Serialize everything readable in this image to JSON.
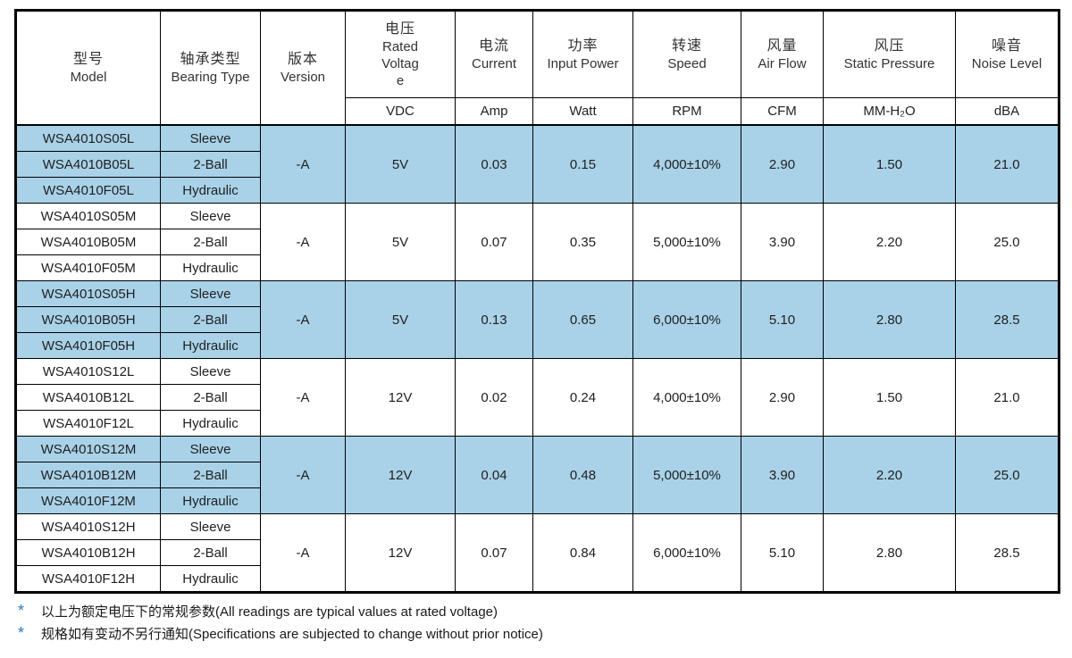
{
  "table": {
    "columns": [
      {
        "cn": "型号",
        "en": "Model",
        "unit": ""
      },
      {
        "cn": "轴承类型",
        "en": "Bearing Type",
        "unit": ""
      },
      {
        "cn": "版本",
        "en": "Version",
        "unit": ""
      },
      {
        "cn": "电压",
        "en": "Rated Voltage",
        "unit": "VDC"
      },
      {
        "cn": "电流",
        "en": "Current",
        "unit": "Amp"
      },
      {
        "cn": "功率",
        "en": "Input Power",
        "unit": "Watt"
      },
      {
        "cn": "转速",
        "en": "Speed",
        "unit": "RPM"
      },
      {
        "cn": "风量",
        "en": "Air Flow",
        "unit": "CFM"
      },
      {
        "cn": "风压",
        "en": "Static Pressure",
        "unit": "MM-H₂O"
      },
      {
        "cn": "噪音",
        "en": "Noise Level",
        "unit": "dBA"
      }
    ],
    "groups": [
      {
        "highlight": true,
        "rows": [
          {
            "model": "WSA4010S05L",
            "bearing": "Sleeve"
          },
          {
            "model": "WSA4010B05L",
            "bearing": "2-Ball"
          },
          {
            "model": "WSA4010F05L",
            "bearing": "Hydraulic"
          }
        ],
        "version": "-A",
        "voltage": "5V",
        "current": "0.03",
        "power": "0.15",
        "speed": "4,000±10%",
        "airflow": "2.90",
        "pressure": "1.50",
        "noise": "21.0"
      },
      {
        "highlight": false,
        "rows": [
          {
            "model": "WSA4010S05M",
            "bearing": "Sleeve"
          },
          {
            "model": "WSA4010B05M",
            "bearing": "2-Ball"
          },
          {
            "model": "WSA4010F05M",
            "bearing": "Hydraulic"
          }
        ],
        "version": "-A",
        "voltage": "5V",
        "current": "0.07",
        "power": "0.35",
        "speed": "5,000±10%",
        "airflow": "3.90",
        "pressure": "2.20",
        "noise": "25.0"
      },
      {
        "highlight": true,
        "rows": [
          {
            "model": "WSA4010S05H",
            "bearing": "Sleeve"
          },
          {
            "model": "WSA4010B05H",
            "bearing": "2-Ball"
          },
          {
            "model": "WSA4010F05H",
            "bearing": "Hydraulic"
          }
        ],
        "version": "-A",
        "voltage": "5V",
        "current": "0.13",
        "power": "0.65",
        "speed": "6,000±10%",
        "airflow": "5.10",
        "pressure": "2.80",
        "noise": "28.5"
      },
      {
        "highlight": false,
        "rows": [
          {
            "model": "WSA4010S12L",
            "bearing": "Sleeve"
          },
          {
            "model": "WSA4010B12L",
            "bearing": "2-Ball"
          },
          {
            "model": "WSA4010F12L",
            "bearing": "Hydraulic"
          }
        ],
        "version": "-A",
        "voltage": "12V",
        "current": "0.02",
        "power": "0.24",
        "speed": "4,000±10%",
        "airflow": "2.90",
        "pressure": "1.50",
        "noise": "21.0"
      },
      {
        "highlight": true,
        "rows": [
          {
            "model": "WSA4010S12M",
            "bearing": "Sleeve"
          },
          {
            "model": "WSA4010B12M",
            "bearing": "2-Ball"
          },
          {
            "model": "WSA4010F12M",
            "bearing": "Hydraulic"
          }
        ],
        "version": "-A",
        "voltage": "12V",
        "current": "0.04",
        "power": "0.48",
        "speed": "5,000±10%",
        "airflow": "3.90",
        "pressure": "2.20",
        "noise": "25.0"
      },
      {
        "highlight": false,
        "rows": [
          {
            "model": "WSA4010S12H",
            "bearing": "Sleeve"
          },
          {
            "model": "WSA4010B12H",
            "bearing": "2-Ball"
          },
          {
            "model": "WSA4010F12H",
            "bearing": "Hydraulic"
          }
        ],
        "version": "-A",
        "voltage": "12V",
        "current": "0.07",
        "power": "0.84",
        "speed": "6,000±10%",
        "airflow": "5.10",
        "pressure": "2.80",
        "noise": "28.5"
      }
    ]
  },
  "footnotes": [
    {
      "marker": "*",
      "text": "以上为额定电压下的常规参数(All readings are typical values at rated voltage)"
    },
    {
      "marker": "*",
      "text": "规格如有变动不另行通知(Specifications are subjected to change without prior notice)"
    }
  ],
  "colors": {
    "highlight_row": "#a9d2e8",
    "footnote_marker": "#2e7cc0",
    "border": "#000000"
  }
}
